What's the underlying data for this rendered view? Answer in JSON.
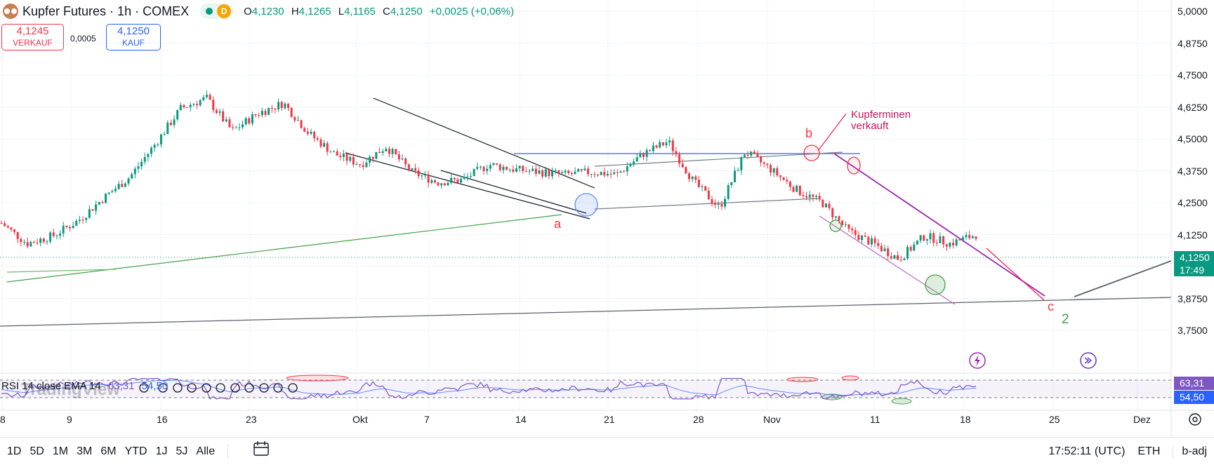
{
  "header": {
    "symbol_title": "Kupfer Futures · 1h · COMEX",
    "delay_badge": "D",
    "open_label": "O",
    "open_value": "4,1230",
    "high_label": "H",
    "high_value": "4,1265",
    "low_label": "L",
    "low_value": "4,1165",
    "close_label": "C",
    "close_value": "4,1250",
    "change": "+0,0025 (+0,06%)"
  },
  "trade": {
    "sell_price": "4,1245",
    "sell_label": "VERKAUF",
    "spread": "0,0005",
    "buy_price": "4,1250",
    "buy_label": "KAUF"
  },
  "price_axis": [
    "5,0000",
    "4,8750",
    "4,7500",
    "4,6250",
    "4,5000",
    "4,3750",
    "4,2500",
    "4,1250",
    "4,0000",
    "3,8750",
    "3,7500"
  ],
  "last_price": {
    "value": "4,1250",
    "countdown": "17:49"
  },
  "time_axis": [
    "8",
    "9",
    "16",
    "23",
    "Okt",
    "7",
    "14",
    "21",
    "28",
    "Nov",
    "11",
    "18",
    "25",
    "Dez"
  ],
  "annotations": {
    "wave_a": "a",
    "wave_b": "b",
    "wave_c": "c",
    "wave_2": "2",
    "note_line1": "Kupferminen",
    "note_line2": "verkauft"
  },
  "rsi": {
    "legend": "RSI 14 close EMA 14",
    "rsi_value": "63,31",
    "ma_value": "54,50",
    "watermark": "TradingView"
  },
  "bottom_bar": {
    "timeframes": [
      "1D",
      "5D",
      "1M",
      "3M",
      "6M",
      "YTD",
      "1J",
      "5J",
      "Alle"
    ],
    "clock": "17:52:11 (UTC)",
    "session": "ETH",
    "adjust": "b-adj"
  },
  "colors": {
    "up": "#089981",
    "down": "#f23645",
    "rsi_line": "#7e57c2",
    "trend_purple": "#9c27b0",
    "trend_blue": "#2962ff",
    "trend_green": "#43a047"
  },
  "chart_data": {
    "type": "candlestick",
    "title": "Kupfer Futures · 1h · COMEX",
    "ylim": [
      3.7,
      5.0
    ],
    "yticks": [
      5.0,
      4.875,
      4.75,
      4.625,
      4.5,
      4.375,
      4.25,
      4.125,
      4.0,
      3.875,
      3.75
    ],
    "x_tick_labels": [
      "8",
      "9",
      "16",
      "23",
      "Okt",
      "7",
      "14",
      "21",
      "28",
      "Nov",
      "11",
      "18",
      "25",
      "Dez"
    ],
    "series": [
      {
        "name": "Kupfer Futures",
        "x": [
          "Sep 8",
          "Sep 9",
          "Sep 12",
          "Sep 16",
          "Sep 19",
          "Sep 23",
          "Sep 25",
          "Sep 27",
          "Sep 30",
          "Okt 1",
          "Okt 3",
          "Okt 4",
          "Okt 7",
          "Okt 9",
          "Okt 11",
          "Okt 14",
          "Okt 16",
          "Okt 18",
          "Okt 19",
          "Okt 21",
          "Okt 22",
          "Okt 25",
          "Okt 28",
          "Okt 31",
          "Nov 1",
          "Nov 4",
          "Nov 5",
          "Nov 6",
          "Nov 7",
          "Nov 8",
          "Nov 9",
          "Nov 11",
          "Nov 12",
          "Nov 14",
          "Nov 15",
          "Nov 16",
          "Nov 17",
          "Nov 18",
          "Nov 19"
        ],
        "values": [
          4.17,
          4.09,
          4.12,
          4.18,
          4.27,
          4.35,
          4.48,
          4.62,
          4.66,
          4.53,
          4.6,
          4.64,
          4.52,
          4.44,
          4.4,
          4.47,
          4.37,
          4.33,
          4.34,
          4.4,
          4.38,
          4.37,
          4.36,
          4.37,
          4.36,
          4.44,
          4.49,
          4.33,
          4.23,
          4.45,
          4.38,
          4.3,
          4.25,
          4.14,
          4.09,
          4.03,
          4.12,
          4.09,
          4.125
        ]
      }
    ],
    "last": 4.125,
    "rsi": {
      "name": "RSI",
      "rsi_last": 63.31,
      "ma_last": 54.5
    }
  }
}
